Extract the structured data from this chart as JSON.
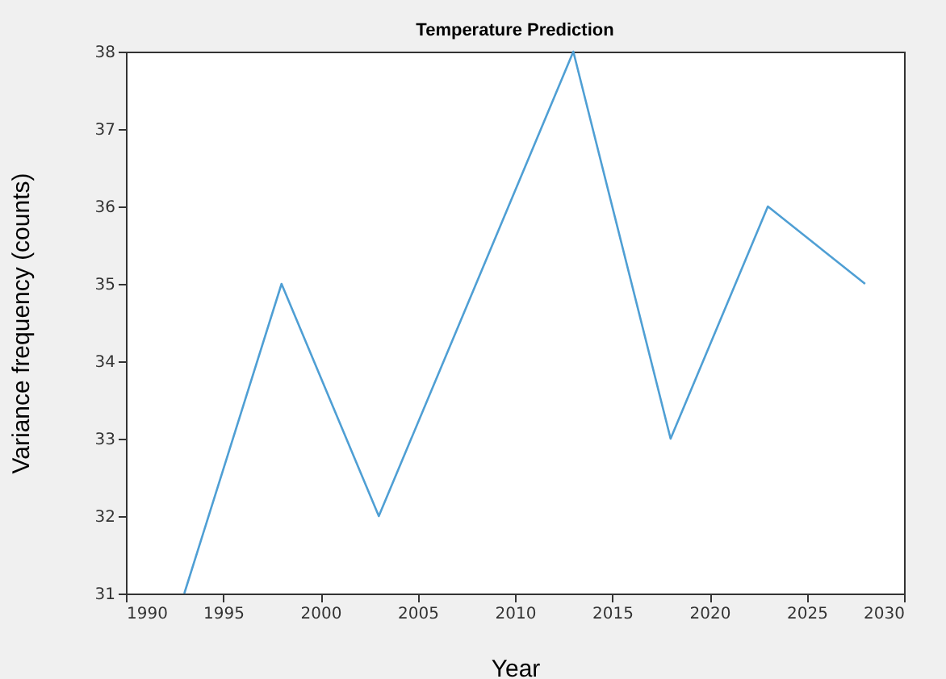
{
  "chart_data": {
    "type": "line",
    "title": "Temperature Prediction",
    "xlabel": "Year",
    "ylabel": "Variance frequency (counts)",
    "x": [
      1993,
      1998,
      2003,
      2013,
      2018,
      2023,
      2028
    ],
    "series": [
      {
        "color": "#4f9fd4",
        "values": [
          31,
          35,
          32,
          38,
          33,
          36,
          35
        ]
      }
    ],
    "xlim": [
      1990,
      2030
    ],
    "xticks": [
      1990,
      1995,
      2000,
      2005,
      2010,
      2015,
      2020,
      2025,
      2030
    ],
    "ylim": [
      31,
      38
    ],
    "yticks": [
      31,
      32,
      33,
      34,
      35,
      36,
      37,
      38
    ],
    "grid": false,
    "marker": "none",
    "line_style": "solid"
  }
}
